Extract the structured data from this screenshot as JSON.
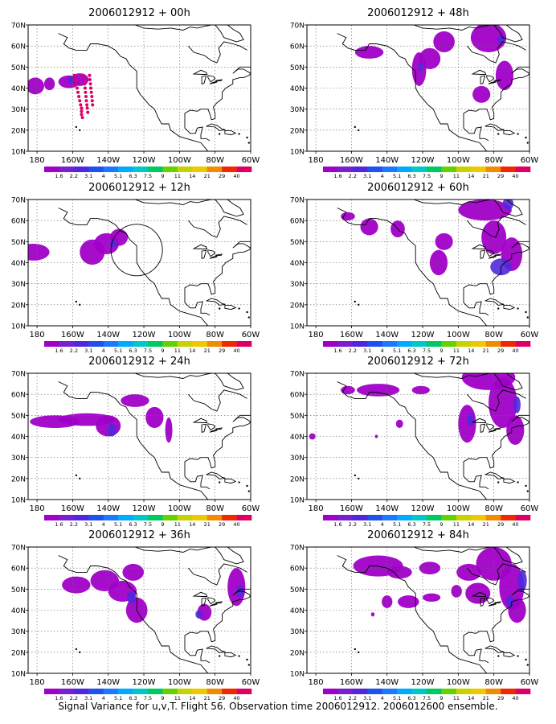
{
  "figure": {
    "caption": "Signal Variance for u,v,T. Flight 56. Observation time 2006012912. 2006012600 ensemble."
  },
  "axes": {
    "lat_labels": [
      "70N",
      "60N",
      "50N",
      "40N",
      "30N",
      "20N",
      "10N"
    ],
    "lon_labels": [
      "180",
      "160W",
      "140W",
      "120W",
      "100W",
      "80W",
      "60W"
    ]
  },
  "colorbar": {
    "labels": [
      "1.6",
      "2.2",
      "3.1",
      "4",
      "5.1",
      "6.3",
      "7.5",
      "9",
      "11",
      "14",
      "21",
      "29",
      "40"
    ],
    "colors": [
      "#a000c8",
      "#7820d0",
      "#5028dc",
      "#2050f0",
      "#1e78ff",
      "#00aaff",
      "#00c8c8",
      "#00c864",
      "#64d200",
      "#c8d200",
      "#f0c800",
      "#f08c00",
      "#f02800",
      "#dc0064"
    ]
  },
  "panels": [
    {
      "title": "2006012912 + 00h",
      "track": true,
      "circle": false
    },
    {
      "title": "2006012912 + 48h",
      "track": false,
      "circle": false
    },
    {
      "title": "2006012912 + 12h",
      "track": false,
      "circle": true
    },
    {
      "title": "2006012912 + 60h",
      "track": false,
      "circle": false
    },
    {
      "title": "2006012912 + 24h",
      "track": false,
      "circle": false
    },
    {
      "title": "2006012912 + 72h",
      "track": false,
      "circle": false
    },
    {
      "title": "2006012912 + 36h",
      "track": false,
      "circle": false
    },
    {
      "title": "2006012912 + 84h",
      "track": false,
      "circle": false
    }
  ]
}
